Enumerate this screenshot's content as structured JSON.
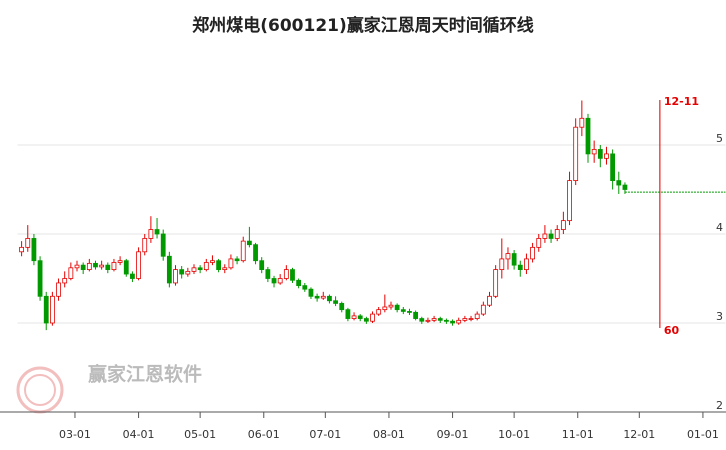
{
  "chart_data": {
    "type": "candlestick",
    "title": "郑州煤电(600121)赢家江恩周天时间循环线",
    "watermark": "赢家江恩软件",
    "xlim": [
      31,
      376
    ],
    "xticks": [
      {
        "value": 59,
        "label": "03-01"
      },
      {
        "value": 90,
        "label": "04-01"
      },
      {
        "value": 120,
        "label": "05-01"
      },
      {
        "value": 151,
        "label": "06-01"
      },
      {
        "value": 181,
        "label": "07-01"
      },
      {
        "value": 212,
        "label": "08-01"
      },
      {
        "value": 243,
        "label": "09-01"
      },
      {
        "value": 273,
        "label": "10-01"
      },
      {
        "value": 304,
        "label": "11-01"
      },
      {
        "value": 334,
        "label": "12-01"
      },
      {
        "value": 365,
        "label": "01-01"
      }
    ],
    "ylim": [
      2,
      6.2
    ],
    "yticks": [
      2,
      3,
      4,
      5
    ],
    "grid": true,
    "up_color": "#e60000",
    "down_color": "#009900",
    "x": [
      33,
      36,
      39,
      42,
      45,
      48,
      51,
      54,
      57,
      60,
      63,
      66,
      69,
      72,
      75,
      78,
      81,
      84,
      87,
      90,
      93,
      96,
      99,
      102,
      105,
      108,
      111,
      114,
      117,
      120,
      123,
      126,
      129,
      132,
      135,
      138,
      141,
      144,
      147,
      150,
      153,
      156,
      159,
      162,
      165,
      168,
      171,
      174,
      177,
      180,
      183,
      186,
      189,
      192,
      195,
      198,
      201,
      204,
      207,
      210,
      213,
      216,
      219,
      222,
      225,
      228,
      231,
      234,
      237,
      240,
      243,
      246,
      249,
      252,
      255,
      258,
      261,
      264,
      267,
      270,
      273,
      276,
      279,
      282,
      285,
      288,
      291,
      294,
      297,
      300,
      303,
      306,
      309,
      312,
      315,
      318,
      321,
      324,
      327
    ],
    "values": [
      [
        3.8,
        3.92,
        3.75,
        3.85
      ],
      [
        3.85,
        4.1,
        3.8,
        3.95
      ],
      [
        3.95,
        4.0,
        3.65,
        3.7
      ],
      [
        3.7,
        3.75,
        3.25,
        3.3
      ],
      [
        3.3,
        3.35,
        2.92,
        3.0
      ],
      [
        3.0,
        3.35,
        2.97,
        3.3
      ],
      [
        3.3,
        3.5,
        3.25,
        3.45
      ],
      [
        3.45,
        3.58,
        3.4,
        3.5
      ],
      [
        3.5,
        3.68,
        3.48,
        3.62
      ],
      [
        3.62,
        3.7,
        3.58,
        3.65
      ],
      [
        3.65,
        3.68,
        3.55,
        3.6
      ],
      [
        3.6,
        3.72,
        3.58,
        3.67
      ],
      [
        3.67,
        3.7,
        3.6,
        3.63
      ],
      [
        3.63,
        3.7,
        3.6,
        3.65
      ],
      [
        3.65,
        3.68,
        3.56,
        3.6
      ],
      [
        3.6,
        3.72,
        3.58,
        3.68
      ],
      [
        3.68,
        3.75,
        3.65,
        3.7
      ],
      [
        3.7,
        3.72,
        3.52,
        3.55
      ],
      [
        3.55,
        3.58,
        3.46,
        3.5
      ],
      [
        3.5,
        3.85,
        3.48,
        3.8
      ],
      [
        3.8,
        4.0,
        3.76,
        3.95
      ],
      [
        3.95,
        4.2,
        3.9,
        4.05
      ],
      [
        4.05,
        4.18,
        3.95,
        4.0
      ],
      [
        4.0,
        4.05,
        3.7,
        3.75
      ],
      [
        3.75,
        3.8,
        3.4,
        3.45
      ],
      [
        3.45,
        3.65,
        3.42,
        3.6
      ],
      [
        3.6,
        3.64,
        3.5,
        3.55
      ],
      [
        3.55,
        3.62,
        3.52,
        3.58
      ],
      [
        3.58,
        3.66,
        3.55,
        3.62
      ],
      [
        3.62,
        3.65,
        3.56,
        3.6
      ],
      [
        3.6,
        3.72,
        3.58,
        3.68
      ],
      [
        3.68,
        3.76,
        3.65,
        3.7
      ],
      [
        3.7,
        3.72,
        3.57,
        3.6
      ],
      [
        3.6,
        3.66,
        3.56,
        3.62
      ],
      [
        3.62,
        3.77,
        3.6,
        3.72
      ],
      [
        3.72,
        3.75,
        3.66,
        3.7
      ],
      [
        3.7,
        3.97,
        3.68,
        3.92
      ],
      [
        3.92,
        4.08,
        3.85,
        3.88
      ],
      [
        3.88,
        3.9,
        3.66,
        3.7
      ],
      [
        3.7,
        3.74,
        3.56,
        3.6
      ],
      [
        3.6,
        3.63,
        3.46,
        3.5
      ],
      [
        3.5,
        3.53,
        3.4,
        3.45
      ],
      [
        3.45,
        3.55,
        3.43,
        3.5
      ],
      [
        3.5,
        3.65,
        3.48,
        3.6
      ],
      [
        3.6,
        3.62,
        3.45,
        3.48
      ],
      [
        3.48,
        3.5,
        3.39,
        3.42
      ],
      [
        3.42,
        3.45,
        3.35,
        3.38
      ],
      [
        3.38,
        3.4,
        3.27,
        3.3
      ],
      [
        3.3,
        3.33,
        3.24,
        3.28
      ],
      [
        3.28,
        3.35,
        3.26,
        3.3
      ],
      [
        3.3,
        3.32,
        3.22,
        3.25
      ],
      [
        3.25,
        3.3,
        3.19,
        3.22
      ],
      [
        3.22,
        3.24,
        3.12,
        3.15
      ],
      [
        3.15,
        3.17,
        3.02,
        3.05
      ],
      [
        3.05,
        3.12,
        3.03,
        3.08
      ],
      [
        3.08,
        3.1,
        3.02,
        3.05
      ],
      [
        3.05,
        3.07,
        2.99,
        3.02
      ],
      [
        3.02,
        3.13,
        3.0,
        3.1
      ],
      [
        3.1,
        3.18,
        3.08,
        3.15
      ],
      [
        3.15,
        3.32,
        3.12,
        3.18
      ],
      [
        3.18,
        3.24,
        3.15,
        3.2
      ],
      [
        3.2,
        3.22,
        3.12,
        3.15
      ],
      [
        3.15,
        3.18,
        3.1,
        3.13
      ],
      [
        3.13,
        3.16,
        3.09,
        3.12
      ],
      [
        3.12,
        3.14,
        3.03,
        3.05
      ],
      [
        3.05,
        3.07,
        2.99,
        3.02
      ],
      [
        3.02,
        3.06,
        3.0,
        3.03
      ],
      [
        3.03,
        3.08,
        3.01,
        3.05
      ],
      [
        3.05,
        3.07,
        3.0,
        3.03
      ],
      [
        3.03,
        3.05,
        2.99,
        3.02
      ],
      [
        3.02,
        3.04,
        2.97,
        3.0
      ],
      [
        3.0,
        3.06,
        2.98,
        3.03
      ],
      [
        3.03,
        3.08,
        3.01,
        3.05
      ],
      [
        3.05,
        3.08,
        3.02,
        3.05
      ],
      [
        3.05,
        3.13,
        3.03,
        3.1
      ],
      [
        3.1,
        3.24,
        3.08,
        3.2
      ],
      [
        3.2,
        3.35,
        3.18,
        3.3
      ],
      [
        3.3,
        3.65,
        3.28,
        3.6
      ],
      [
        3.6,
        3.95,
        3.5,
        3.72
      ],
      [
        3.72,
        3.85,
        3.6,
        3.78
      ],
      [
        3.78,
        3.82,
        3.6,
        3.65
      ],
      [
        3.65,
        3.7,
        3.52,
        3.6
      ],
      [
        3.6,
        3.78,
        3.55,
        3.72
      ],
      [
        3.72,
        3.9,
        3.68,
        3.85
      ],
      [
        3.85,
        4.0,
        3.8,
        3.95
      ],
      [
        3.95,
        4.1,
        3.9,
        4.0
      ],
      [
        4.0,
        4.05,
        3.9,
        3.95
      ],
      [
        3.95,
        4.1,
        3.92,
        4.05
      ],
      [
        4.05,
        4.25,
        4.0,
        4.15
      ],
      [
        4.15,
        4.7,
        4.1,
        4.6
      ],
      [
        4.6,
        5.3,
        4.55,
        5.2
      ],
      [
        5.2,
        5.5,
        5.1,
        5.3
      ],
      [
        5.3,
        5.35,
        4.8,
        4.9
      ],
      [
        4.9,
        5.05,
        4.8,
        4.95
      ],
      [
        4.95,
        5.0,
        4.75,
        4.85
      ],
      [
        4.85,
        4.98,
        4.78,
        4.9
      ],
      [
        4.9,
        4.95,
        4.5,
        4.6
      ],
      [
        4.6,
        4.7,
        4.45,
        4.55
      ],
      [
        4.55,
        4.58,
        4.45,
        4.5
      ]
    ],
    "level": 4.47,
    "level_color": "#009900",
    "marker": {
      "x": 344,
      "label": "12-11",
      "period_label": "60",
      "color": "#e60000"
    }
  }
}
